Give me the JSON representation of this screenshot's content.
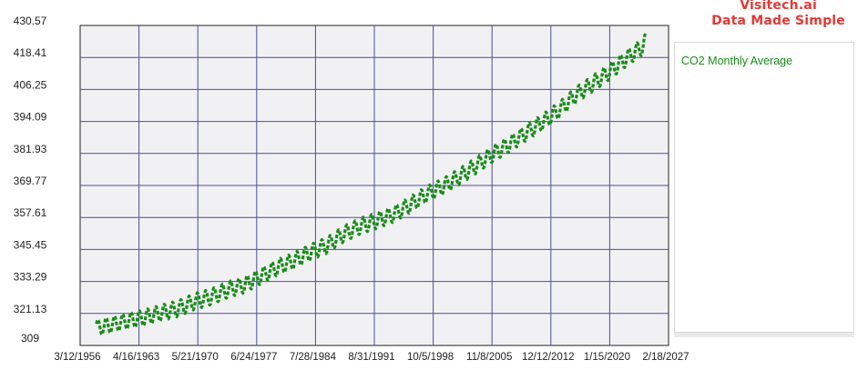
{
  "brand": {
    "line1": "Visitech.ai",
    "line2": "Data Made Simple",
    "color": "#e53935"
  },
  "chart_data": {
    "type": "line",
    "title": "",
    "xlabel": "",
    "ylabel": "",
    "x_axis": {
      "kind": "date",
      "min": "1956-03-12",
      "max": "2027-02-18",
      "tick_labels": [
        "3/12/1956",
        "4/16/1963",
        "5/21/1970",
        "6/24/1977",
        "7/28/1984",
        "8/31/1991",
        "10/5/1998",
        "11/8/2005",
        "12/12/2012",
        "1/15/2020",
        "2/18/2027"
      ]
    },
    "y_axis": {
      "min": 309,
      "max": 430.57,
      "tick_labels": [
        "309",
        "321.13",
        "333.29",
        "345.45",
        "357.61",
        "369.77",
        "381.93",
        "394.09",
        "406.25",
        "418.41",
        "430.57"
      ]
    },
    "grid": true,
    "legend_position": "right",
    "series": [
      {
        "name": "CO2 Monthly Average",
        "color": "#1a8c1a",
        "seasonal_amplitude_ppm": 3,
        "points": [
          {
            "x": "1958-03-01",
            "y": 315.7
          },
          {
            "x": "1960-01-01",
            "y": 316.9
          },
          {
            "x": "1962-01-01",
            "y": 318.4
          },
          {
            "x": "1964-01-01",
            "y": 319.6
          },
          {
            "x": "1966-01-01",
            "y": 321.4
          },
          {
            "x": "1968-01-01",
            "y": 323.0
          },
          {
            "x": "1970-01-01",
            "y": 325.7
          },
          {
            "x": "1972-01-01",
            "y": 327.5
          },
          {
            "x": "1974-01-01",
            "y": 330.2
          },
          {
            "x": "1976-01-01",
            "y": 332.0
          },
          {
            "x": "1978-01-01",
            "y": 335.4
          },
          {
            "x": "1980-01-01",
            "y": 338.7
          },
          {
            "x": "1982-01-01",
            "y": 341.2
          },
          {
            "x": "1984-01-01",
            "y": 344.4
          },
          {
            "x": "1986-01-01",
            "y": 347.1
          },
          {
            "x": "1988-01-01",
            "y": 351.4
          },
          {
            "x": "1990-01-01",
            "y": 354.4
          },
          {
            "x": "1992-01-01",
            "y": 356.5
          },
          {
            "x": "1994-01-01",
            "y": 358.9
          },
          {
            "x": "1996-01-01",
            "y": 362.5
          },
          {
            "x": "1998-01-01",
            "y": 366.5
          },
          {
            "x": "2000-01-01",
            "y": 369.5
          },
          {
            "x": "2002-01-01",
            "y": 373.3
          },
          {
            "x": "2004-01-01",
            "y": 377.5
          },
          {
            "x": "2006-01-01",
            "y": 381.9
          },
          {
            "x": "2008-01-01",
            "y": 385.6
          },
          {
            "x": "2010-01-01",
            "y": 389.9
          },
          {
            "x": "2012-01-01",
            "y": 393.9
          },
          {
            "x": "2014-01-01",
            "y": 398.6
          },
          {
            "x": "2016-01-01",
            "y": 404.2
          },
          {
            "x": "2018-01-01",
            "y": 408.5
          },
          {
            "x": "2020-01-01",
            "y": 413.0
          },
          {
            "x": "2022-01-01",
            "y": 418.0
          },
          {
            "x": "2024-01-01",
            "y": 422.5
          },
          {
            "x": "2024-06-01",
            "y": 425.0
          }
        ]
      }
    ]
  }
}
